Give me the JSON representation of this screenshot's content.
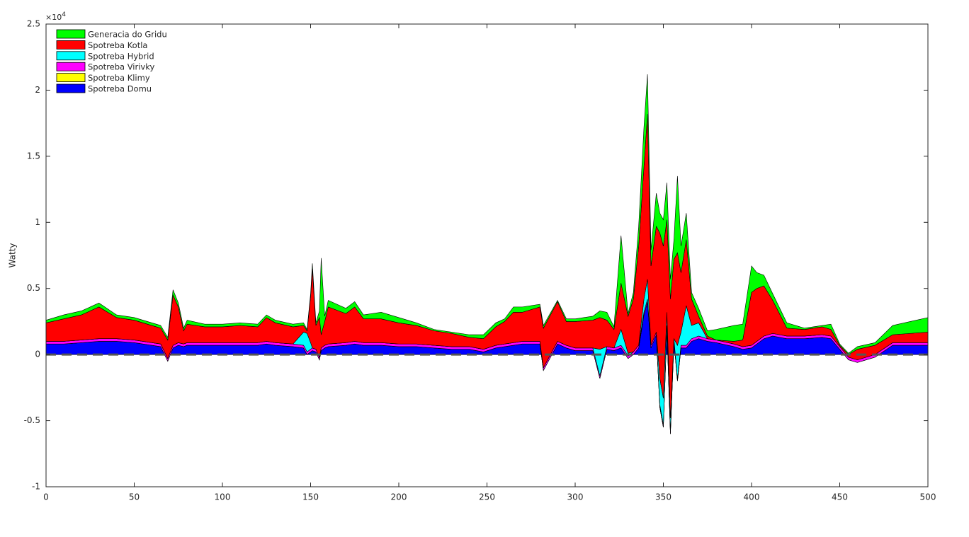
{
  "chart_data": {
    "type": "stacked-area",
    "ylabel": "Watty",
    "y_scale_base": "×10",
    "y_scale_exponent": "4",
    "x": [
      0,
      10,
      20,
      30,
      40,
      50,
      60,
      65,
      69,
      72,
      75,
      78,
      80,
      90,
      100,
      110,
      120,
      125,
      130,
      140,
      146,
      148,
      150,
      151,
      153,
      155,
      156,
      158,
      160,
      170,
      175,
      180,
      190,
      200,
      210,
      220,
      230,
      240,
      248,
      255,
      260,
      265,
      270,
      280,
      282,
      290,
      295,
      300,
      310,
      314,
      318,
      322,
      326,
      330,
      333,
      336,
      339,
      341,
      343,
      346,
      348,
      350,
      352,
      354,
      356,
      358,
      360,
      363,
      366,
      370,
      375,
      380,
      390,
      395,
      400,
      403,
      407,
      412,
      420,
      430,
      440,
      445,
      450,
      455,
      460,
      470,
      480,
      490,
      500
    ],
    "series": [
      {
        "name": "Generacia do Gridu",
        "color": "#00ff00",
        "values": [
          0.02,
          0.03,
          0.03,
          0.03,
          0.02,
          0.02,
          0.02,
          0.02,
          0.02,
          0.04,
          0.03,
          0.02,
          0.03,
          0.02,
          0.02,
          0.02,
          0.02,
          0.02,
          0.02,
          0.02,
          0.02,
          0.01,
          0.02,
          0.04,
          0.02,
          0.05,
          0.58,
          0.04,
          0.05,
          0.04,
          0.04,
          0.03,
          0.05,
          0.04,
          0.02,
          0.01,
          0.01,
          0.02,
          0.03,
          0.03,
          0.02,
          0.04,
          0.04,
          0.02,
          0.02,
          0.01,
          0.02,
          0.02,
          0.03,
          0.05,
          0.06,
          0.02,
          0.36,
          0.02,
          0.05,
          0.15,
          0.3,
          0.3,
          0.12,
          0.25,
          0.15,
          0.2,
          0.28,
          0.15,
          0.15,
          0.58,
          0.2,
          0.2,
          0.05,
          0.06,
          0.04,
          0.08,
          0.12,
          0.12,
          0.2,
          0.12,
          0.08,
          0.05,
          0.04,
          0.01,
          0.01,
          0.04,
          0.01,
          0.01,
          0.02,
          0.02,
          0.07,
          0.09,
          0.11
        ]
      },
      {
        "name": "Spotreba Kotla",
        "color": "#ff0000",
        "values": [
          0.14,
          0.17,
          0.19,
          0.24,
          0.16,
          0.15,
          0.13,
          0.12,
          0.14,
          0.38,
          0.27,
          0.1,
          0.14,
          0.12,
          0.12,
          0.13,
          0.12,
          0.18,
          0.15,
          0.13,
          0.05,
          0.02,
          0.35,
          0.6,
          0.18,
          0.3,
          0.1,
          0.18,
          0.28,
          0.22,
          0.26,
          0.18,
          0.18,
          0.16,
          0.14,
          0.11,
          0.1,
          0.07,
          0.08,
          0.14,
          0.17,
          0.23,
          0.22,
          0.26,
          0.3,
          0.3,
          0.18,
          0.2,
          0.21,
          0.24,
          0.2,
          0.14,
          0.35,
          0.28,
          0.4,
          0.75,
          1.0,
          1.25,
          0.6,
          0.8,
          1.1,
          1.15,
          0.7,
          0.9,
          0.6,
          0.7,
          0.45,
          0.5,
          0.2,
          0.05,
          0.02,
          0,
          0.02,
          0.05,
          0.4,
          0.4,
          0.38,
          0.25,
          0.06,
          0.05,
          0.06,
          0.05,
          0.01,
          0.02,
          0.08,
          0.07,
          0.06,
          0.07,
          0.08
        ]
      },
      {
        "name": "Spotreba Hybrid",
        "color": "#00ffff",
        "values": [
          0,
          0,
          0,
          0,
          0,
          0,
          0,
          0,
          0,
          0,
          0,
          0,
          0,
          0,
          0,
          0,
          0,
          0,
          0,
          0,
          0.1,
          0.14,
          0.05,
          0,
          0,
          0,
          0,
          0,
          0,
          0,
          0,
          0,
          0,
          0,
          0,
          0,
          0,
          0,
          0,
          0,
          0,
          0,
          0,
          0,
          0,
          0,
          0,
          0,
          0,
          0.2,
          0,
          0,
          0.12,
          0.02,
          0,
          0,
          0.1,
          0.15,
          0,
          0,
          0.2,
          0.2,
          0.1,
          0.1,
          0,
          0.25,
          0.1,
          0.3,
          0.1,
          0.1,
          0,
          0,
          0,
          0,
          0,
          0,
          0,
          0,
          0,
          0,
          0,
          0,
          0,
          0,
          0,
          0,
          0,
          0,
          0
        ]
      },
      {
        "name": "Spotreba Virivky",
        "color": "#ff00ff",
        "values": [
          0.02,
          0.02,
          0.02,
          0.02,
          0.02,
          0.02,
          0.02,
          0.02,
          0.02,
          0.02,
          0.02,
          0.02,
          0.02,
          0.02,
          0.02,
          0.02,
          0.02,
          0.02,
          0.02,
          0.02,
          0.02,
          0.02,
          0.02,
          0.02,
          0.02,
          0.02,
          0.02,
          0.02,
          0.02,
          0.02,
          0.02,
          0.02,
          0.02,
          0.02,
          0.02,
          0.02,
          0.02,
          0.02,
          0.02,
          0.02,
          0.02,
          0.02,
          0.02,
          0.02,
          0.02,
          0.02,
          0.02,
          0.02,
          0.02,
          0.02,
          0.02,
          0.02,
          0.02,
          0.02,
          0.02,
          0.02,
          0.02,
          0.02,
          0.02,
          0.02,
          0.02,
          0.02,
          0.02,
          0.02,
          0.02,
          0.02,
          0.02,
          0.02,
          0.02,
          0.02,
          0.02,
          0.02,
          0.02,
          0.02,
          0.02,
          0.02,
          0.02,
          0.02,
          0.02,
          0.02,
          0.02,
          0.02,
          0.02,
          0.02,
          0.02,
          0.02,
          0.02,
          0.02,
          0.02
        ]
      },
      {
        "name": "Spotreba Klimy",
        "color": "#ffff00",
        "values": [
          0,
          0,
          0,
          0,
          0,
          0,
          0,
          0,
          0,
          0,
          0,
          0,
          0,
          0,
          0,
          0,
          0,
          0,
          0,
          0,
          0,
          0,
          0,
          0,
          0,
          0,
          0,
          0,
          0,
          0,
          0,
          0,
          0,
          0,
          0,
          0,
          0,
          0,
          0,
          0,
          0,
          0,
          0,
          0,
          0,
          0,
          0,
          0,
          0,
          0,
          0,
          0,
          0,
          0,
          0,
          0,
          0,
          0,
          0,
          0,
          0,
          0,
          0,
          0,
          0,
          0,
          0,
          0,
          0,
          0,
          0,
          0,
          0,
          0,
          0,
          0,
          0,
          0,
          0,
          0,
          0,
          0,
          0,
          0,
          0,
          0,
          0,
          0,
          0
        ]
      },
      {
        "name": "Spotreba Domu",
        "color": "#0000ff",
        "values": [
          0.08,
          0.08,
          0.09,
          0.1,
          0.1,
          0.09,
          0.07,
          0.06,
          -0.05,
          0.05,
          0.07,
          0.06,
          0.07,
          0.07,
          0.07,
          0.07,
          0.07,
          0.08,
          0.07,
          0.06,
          0.05,
          0,
          0.02,
          0.03,
          0.02,
          -0.04,
          0.03,
          0.05,
          0.06,
          0.07,
          0.08,
          0.07,
          0.07,
          0.06,
          0.06,
          0.05,
          0.04,
          0.04,
          0.02,
          0.05,
          0.06,
          0.07,
          0.08,
          0.08,
          -0.12,
          0.08,
          0.05,
          0.03,
          0.03,
          -0.18,
          0.04,
          0.03,
          0.05,
          -0.03,
          0,
          0.05,
          0.3,
          0.4,
          0.05,
          0.15,
          -0.4,
          -0.55,
          0.2,
          -0.6,
          0.1,
          -0.2,
          0.05,
          0.05,
          0.1,
          0.12,
          0.1,
          0.09,
          0.06,
          0.04,
          0.05,
          0.08,
          0.12,
          0.14,
          0.12,
          0.12,
          0.13,
          0.12,
          0.04,
          -0.04,
          -0.06,
          -0.02,
          0.07,
          0.07,
          0.07
        ]
      }
    ],
    "xlim": [
      0,
      500
    ],
    "xticks": [
      0,
      50,
      100,
      150,
      200,
      250,
      300,
      350,
      400,
      450,
      500
    ],
    "ylim": [
      -1,
      2.5
    ],
    "yticks": [
      -1,
      -0.5,
      0,
      0.5,
      1,
      1.5,
      2,
      2.5
    ],
    "legend": "upper-left"
  }
}
